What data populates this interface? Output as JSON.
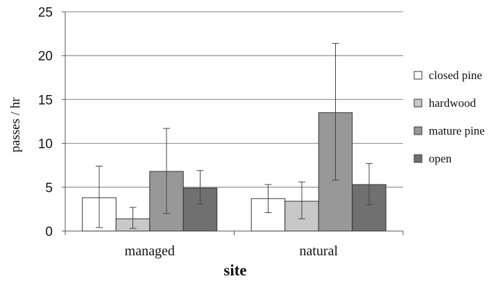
{
  "chart_data": {
    "type": "bar",
    "title": "",
    "xlabel": "site",
    "ylabel": "passes / hr",
    "categories": [
      "managed",
      "natural"
    ],
    "ylim": [
      0,
      25
    ],
    "yticks": [
      0,
      5,
      10,
      15,
      20,
      25
    ],
    "grid": true,
    "legend_position": "right",
    "series": [
      {
        "name": "closed pine",
        "color": "#ffffff",
        "values": [
          3.8,
          3.7
        ],
        "error_low": [
          0.4,
          2.1
        ],
        "error_high": [
          7.4,
          5.3
        ]
      },
      {
        "name": "hardwood",
        "color": "#c8c8c8",
        "values": [
          1.4,
          3.4
        ],
        "error_low": [
          0.3,
          1.4
        ],
        "error_high": [
          2.7,
          5.6
        ]
      },
      {
        "name": "mature pine",
        "color": "#989898",
        "values": [
          6.8,
          13.5
        ],
        "error_low": [
          2.0,
          5.8
        ],
        "error_high": [
          11.7,
          21.4
        ]
      },
      {
        "name": "open",
        "color": "#707070",
        "values": [
          4.9,
          5.3
        ],
        "error_low": [
          3.1,
          3.0
        ],
        "error_high": [
          6.9,
          7.7
        ]
      }
    ]
  }
}
